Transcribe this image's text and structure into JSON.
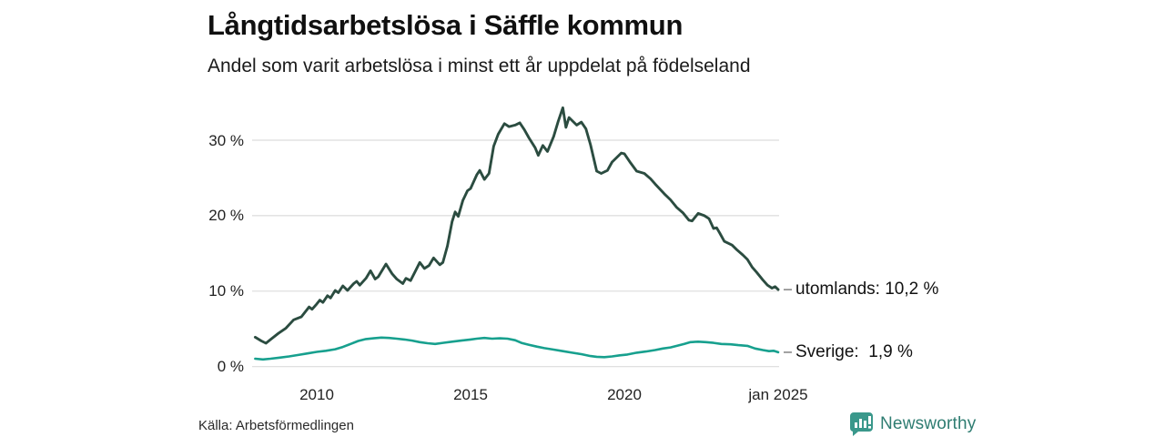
{
  "chart_data": {
    "type": "line",
    "title": "Långtidsarbetslösa i Säffle kommun",
    "subtitle": "Andel som varit arbetslösa i minst ett år uppdelat på födelseland",
    "source": "Källa: Arbetsförmedlingen",
    "x_range": [
      2008.0,
      2025.0
    ],
    "y_axis": {
      "range": [
        0,
        35
      ],
      "grid": true,
      "ticks": [
        {
          "value": 0,
          "label": "0 %"
        },
        {
          "value": 10,
          "label": "10 %"
        },
        {
          "value": 20,
          "label": "20 %"
        },
        {
          "value": 30,
          "label": "30 %"
        }
      ]
    },
    "x_axis": {
      "ticks": [
        {
          "year": 2010,
          "label": "2010"
        },
        {
          "year": 2015,
          "label": "2015"
        },
        {
          "year": 2020,
          "label": "2020"
        },
        {
          "year": 2025,
          "label": "jan 2025"
        }
      ]
    },
    "series": [
      {
        "name": "utomlands",
        "color": "#2b4c40",
        "end_value": 10.2,
        "end_label": "utomlands: 10,2 %",
        "points": [
          [
            2008.0,
            3.9
          ],
          [
            2008.2,
            3.4
          ],
          [
            2008.35,
            3.1
          ],
          [
            2008.5,
            3.6
          ],
          [
            2008.75,
            4.4
          ],
          [
            2009.0,
            5.1
          ],
          [
            2009.25,
            6.2
          ],
          [
            2009.5,
            6.6
          ],
          [
            2009.75,
            7.9
          ],
          [
            2009.85,
            7.6
          ],
          [
            2010.0,
            8.3
          ],
          [
            2010.1,
            8.8
          ],
          [
            2010.2,
            8.5
          ],
          [
            2010.35,
            9.4
          ],
          [
            2010.45,
            9.1
          ],
          [
            2010.6,
            10.1
          ],
          [
            2010.7,
            9.8
          ],
          [
            2010.85,
            10.7
          ],
          [
            2011.0,
            10.1
          ],
          [
            2011.2,
            11.0
          ],
          [
            2011.3,
            11.3
          ],
          [
            2011.4,
            10.8
          ],
          [
            2011.6,
            11.7
          ],
          [
            2011.75,
            12.7
          ],
          [
            2011.9,
            11.6
          ],
          [
            2012.0,
            11.9
          ],
          [
            2012.25,
            13.6
          ],
          [
            2012.45,
            12.3
          ],
          [
            2012.6,
            11.6
          ],
          [
            2012.8,
            11.0
          ],
          [
            2012.9,
            11.7
          ],
          [
            2013.05,
            11.4
          ],
          [
            2013.2,
            12.6
          ],
          [
            2013.35,
            13.8
          ],
          [
            2013.5,
            13.0
          ],
          [
            2013.65,
            13.4
          ],
          [
            2013.8,
            14.4
          ],
          [
            2014.0,
            13.5
          ],
          [
            2014.1,
            13.8
          ],
          [
            2014.25,
            16.0
          ],
          [
            2014.4,
            19.2
          ],
          [
            2014.5,
            20.5
          ],
          [
            2014.6,
            19.9
          ],
          [
            2014.75,
            22.0
          ],
          [
            2014.9,
            23.3
          ],
          [
            2015.0,
            23.6
          ],
          [
            2015.2,
            25.4
          ],
          [
            2015.3,
            26.0
          ],
          [
            2015.45,
            24.8
          ],
          [
            2015.6,
            25.6
          ],
          [
            2015.75,
            29.2
          ],
          [
            2015.9,
            30.8
          ],
          [
            2016.1,
            32.2
          ],
          [
            2016.25,
            31.8
          ],
          [
            2016.45,
            32.0
          ],
          [
            2016.6,
            32.3
          ],
          [
            2016.75,
            31.4
          ],
          [
            2016.9,
            30.3
          ],
          [
            2017.1,
            29.0
          ],
          [
            2017.2,
            28.0
          ],
          [
            2017.35,
            29.3
          ],
          [
            2017.5,
            28.5
          ],
          [
            2017.7,
            30.5
          ],
          [
            2017.85,
            32.5
          ],
          [
            2018.0,
            34.3
          ],
          [
            2018.1,
            31.7
          ],
          [
            2018.2,
            33.0
          ],
          [
            2018.45,
            32.0
          ],
          [
            2018.6,
            32.4
          ],
          [
            2018.75,
            31.5
          ],
          [
            2018.9,
            29.4
          ],
          [
            2019.1,
            25.9
          ],
          [
            2019.25,
            25.6
          ],
          [
            2019.45,
            26.0
          ],
          [
            2019.6,
            27.1
          ],
          [
            2019.9,
            28.3
          ],
          [
            2020.0,
            28.2
          ],
          [
            2020.2,
            27.0
          ],
          [
            2020.4,
            25.9
          ],
          [
            2020.65,
            25.6
          ],
          [
            2020.85,
            24.9
          ],
          [
            2021.0,
            24.2
          ],
          [
            2021.3,
            22.9
          ],
          [
            2021.5,
            22.1
          ],
          [
            2021.7,
            21.1
          ],
          [
            2021.9,
            20.4
          ],
          [
            2022.1,
            19.4
          ],
          [
            2022.2,
            19.3
          ],
          [
            2022.4,
            20.3
          ],
          [
            2022.6,
            20.0
          ],
          [
            2022.75,
            19.6
          ],
          [
            2022.9,
            18.3
          ],
          [
            2023.0,
            18.4
          ],
          [
            2023.1,
            17.7
          ],
          [
            2023.25,
            16.6
          ],
          [
            2023.5,
            16.1
          ],
          [
            2023.65,
            15.5
          ],
          [
            2023.85,
            14.8
          ],
          [
            2024.0,
            14.2
          ],
          [
            2024.15,
            13.2
          ],
          [
            2024.3,
            12.5
          ],
          [
            2024.5,
            11.5
          ],
          [
            2024.65,
            10.8
          ],
          [
            2024.8,
            10.4
          ],
          [
            2024.9,
            10.6
          ],
          [
            2025.0,
            10.2
          ]
        ]
      },
      {
        "name": "Sverige",
        "color": "#17a08e",
        "end_value": 1.9,
        "end_label": "Sverige:  1,9 %",
        "points": [
          [
            2008.0,
            1.05
          ],
          [
            2008.25,
            0.95
          ],
          [
            2008.5,
            1.05
          ],
          [
            2008.8,
            1.2
          ],
          [
            2009.1,
            1.35
          ],
          [
            2009.4,
            1.55
          ],
          [
            2009.7,
            1.75
          ],
          [
            2010.0,
            1.95
          ],
          [
            2010.3,
            2.1
          ],
          [
            2010.6,
            2.3
          ],
          [
            2010.85,
            2.6
          ],
          [
            2011.1,
            3.0
          ],
          [
            2011.35,
            3.4
          ],
          [
            2011.6,
            3.65
          ],
          [
            2011.85,
            3.75
          ],
          [
            2012.1,
            3.85
          ],
          [
            2012.35,
            3.8
          ],
          [
            2012.6,
            3.7
          ],
          [
            2012.85,
            3.6
          ],
          [
            2013.1,
            3.45
          ],
          [
            2013.35,
            3.25
          ],
          [
            2013.6,
            3.1
          ],
          [
            2013.85,
            3.0
          ],
          [
            2014.1,
            3.15
          ],
          [
            2014.4,
            3.3
          ],
          [
            2014.7,
            3.45
          ],
          [
            2015.0,
            3.6
          ],
          [
            2015.2,
            3.7
          ],
          [
            2015.45,
            3.8
          ],
          [
            2015.7,
            3.7
          ],
          [
            2015.95,
            3.75
          ],
          [
            2016.2,
            3.7
          ],
          [
            2016.45,
            3.5
          ],
          [
            2016.65,
            3.15
          ],
          [
            2016.9,
            2.9
          ],
          [
            2017.15,
            2.65
          ],
          [
            2017.4,
            2.45
          ],
          [
            2017.7,
            2.25
          ],
          [
            2018.0,
            2.05
          ],
          [
            2018.3,
            1.85
          ],
          [
            2018.6,
            1.65
          ],
          [
            2018.9,
            1.4
          ],
          [
            2019.1,
            1.3
          ],
          [
            2019.35,
            1.25
          ],
          [
            2019.6,
            1.35
          ],
          [
            2019.85,
            1.5
          ],
          [
            2020.1,
            1.6
          ],
          [
            2020.4,
            1.85
          ],
          [
            2020.7,
            2.0
          ],
          [
            2021.0,
            2.2
          ],
          [
            2021.25,
            2.4
          ],
          [
            2021.5,
            2.55
          ],
          [
            2021.75,
            2.8
          ],
          [
            2021.95,
            3.0
          ],
          [
            2022.15,
            3.25
          ],
          [
            2022.4,
            3.3
          ],
          [
            2022.65,
            3.25
          ],
          [
            2022.9,
            3.15
          ],
          [
            2023.15,
            3.0
          ],
          [
            2023.45,
            2.95
          ],
          [
            2023.7,
            2.85
          ],
          [
            2024.0,
            2.75
          ],
          [
            2024.25,
            2.4
          ],
          [
            2024.5,
            2.2
          ],
          [
            2024.7,
            2.05
          ],
          [
            2024.85,
            2.1
          ],
          [
            2025.0,
            1.9
          ]
        ]
      }
    ],
    "colors": {
      "grid": "#dcdcdc",
      "end_dash": "#8a8a8a",
      "axis_text": "#222222"
    }
  },
  "branding": {
    "logo_text": "Newsworthy",
    "logo_color": "#3a988b"
  }
}
